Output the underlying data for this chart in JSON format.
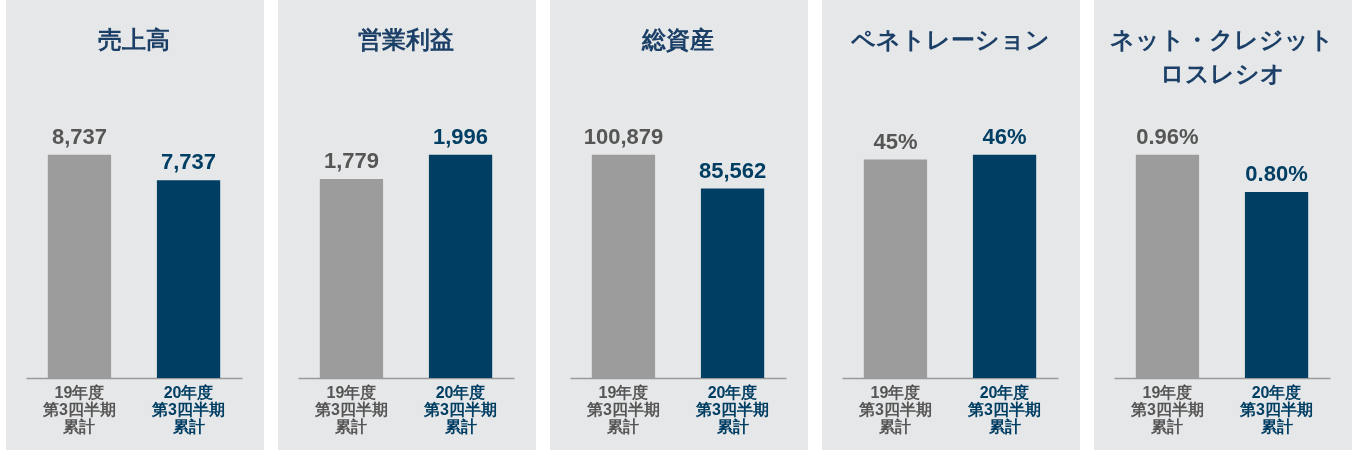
{
  "chart_data": [
    {
      "type": "bar",
      "title": "売上高",
      "categories": [
        "19年度第3四半期累計",
        "20年度第3四半期累計"
      ],
      "values": [
        8737,
        7737
      ],
      "value_labels": [
        "8,737",
        "7,737"
      ],
      "colors": [
        "#9c9c9c",
        "#003e63"
      ]
    },
    {
      "type": "bar",
      "title": "営業利益",
      "categories": [
        "19年度第3四半期累計",
        "20年度第3四半期累計"
      ],
      "values": [
        1779,
        1996
      ],
      "value_labels": [
        "1,779",
        "1,996"
      ],
      "colors": [
        "#9c9c9c",
        "#003e63"
      ]
    },
    {
      "type": "bar",
      "title": "総資産",
      "categories": [
        "19年度第3四半期累計",
        "20年度第3四半期累計"
      ],
      "values": [
        100879,
        85562
      ],
      "value_labels": [
        "100,879",
        "85,562"
      ],
      "colors": [
        "#9c9c9c",
        "#003e63"
      ]
    },
    {
      "type": "bar",
      "title": "ペネトレーション",
      "categories": [
        "19年度第3四半期累計",
        "20年度第3四半期累計"
      ],
      "values": [
        45,
        46
      ],
      "value_labels": [
        "45%",
        "46%"
      ],
      "colors": [
        "#9c9c9c",
        "#003e63"
      ]
    },
    {
      "type": "bar",
      "title": "ネット・クレジットロスレシオ",
      "categories": [
        "19年度第3四半期累計",
        "20年度第3四半期累計"
      ],
      "values": [
        0.96,
        0.8
      ],
      "value_labels": [
        "0.96%",
        "0.80%"
      ],
      "colors": [
        "#9c9c9c",
        "#003e63"
      ]
    }
  ]
}
